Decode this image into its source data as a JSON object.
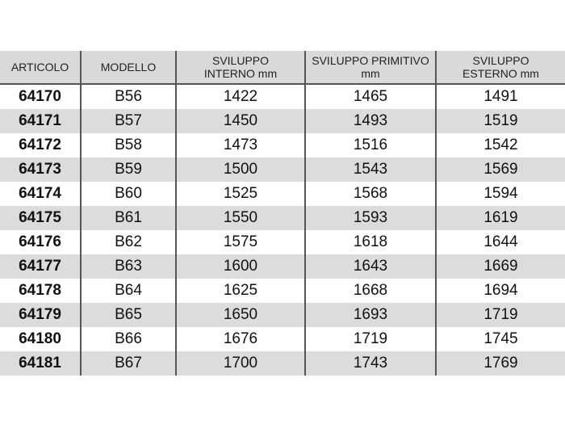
{
  "headers": [
    "ARTICOLO",
    "MODELLO",
    "SVILUPPO\nINTERNO mm",
    "SVILUPPO PRIMITIVO\nmm",
    "SVILUPPO\nESTERNO mm"
  ],
  "rows": [
    [
      "64170",
      "B56",
      "1422",
      "1465",
      "1491"
    ],
    [
      "64171",
      "B57",
      "1450",
      "1493",
      "1519"
    ],
    [
      "64172",
      "B58",
      "1473",
      "1516",
      "1542"
    ],
    [
      "64173",
      "B59",
      "1500",
      "1543",
      "1569"
    ],
    [
      "64174",
      "B60",
      "1525",
      "1568",
      "1594"
    ],
    [
      "64175",
      "B61",
      "1550",
      "1593",
      "1619"
    ],
    [
      "64176",
      "B62",
      "1575",
      "1618",
      "1644"
    ],
    [
      "64177",
      "B63",
      "1600",
      "1643",
      "1669"
    ],
    [
      "64178",
      "B64",
      "1625",
      "1668",
      "1694"
    ],
    [
      "64179",
      "B65",
      "1650",
      "1693",
      "1719"
    ],
    [
      "64180",
      "B66",
      "1676",
      "1719",
      "1745"
    ],
    [
      "64181",
      "B67",
      "1700",
      "1743",
      "1769"
    ]
  ],
  "colors": {
    "header_bg": "#d9d9d9",
    "alt_row_bg": "#dcdcdc",
    "divider": "#555555"
  }
}
